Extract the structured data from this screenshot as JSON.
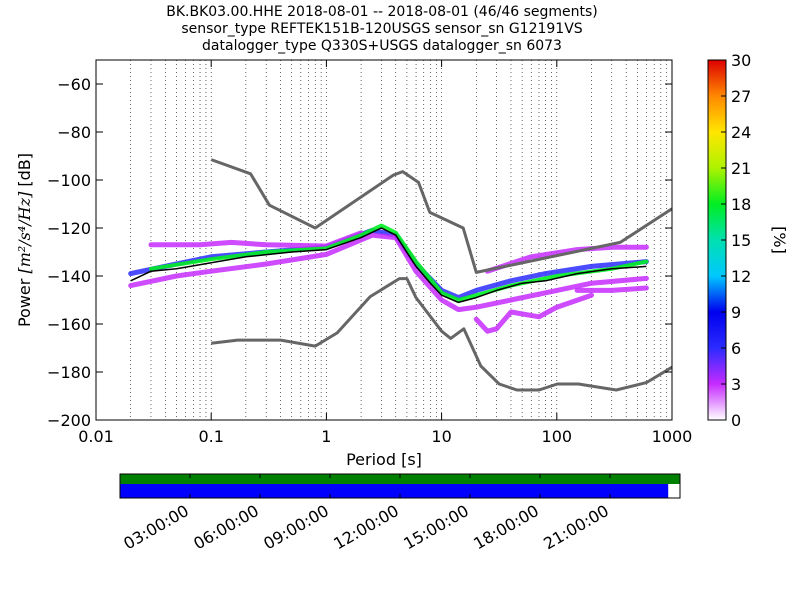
{
  "title_lines": [
    "BK.BK03.00.HHE   2018-08-01 -- 2018-08-01  (46/46 segments)",
    "sensor_type REFTEK151B-120USGS sensor_sn G12191VS",
    "datalogger_type Q330S+USGS datalogger_sn 6073"
  ],
  "chart_data": {
    "type": "heatmap",
    "subtype": "probabilistic-power-spectral-density",
    "x_axis": {
      "label": "Period [s]",
      "scale": "log",
      "lim": [
        0.01,
        1000
      ],
      "ticks": [
        0.01,
        0.1,
        1,
        10,
        100,
        1000
      ],
      "tick_labels": [
        "0.01",
        "0.1",
        "1",
        "10",
        "100",
        "1000"
      ]
    },
    "y_axis": {
      "label_prefix": "Power ",
      "label_math": "[m²/s⁴/Hz]",
      "label_suffix": " [dB]",
      "lim": [
        -200,
        -50
      ],
      "ticks": [
        -200,
        -180,
        -160,
        -140,
        -120,
        -100,
        -80,
        -60
      ],
      "tick_labels": [
        "−200",
        "−180",
        "−160",
        "−140",
        "−120",
        "−100",
        "−80",
        "−60"
      ]
    },
    "grid": "dotted-vertical",
    "colorbar": {
      "label": "[%]",
      "range": [
        0,
        30
      ],
      "ticks": [
        0,
        3,
        6,
        9,
        12,
        15,
        18,
        21,
        24,
        27,
        30
      ],
      "stops": [
        "#ffffff",
        "#c62bff",
        "#2b2bff",
        "#0000ee",
        "#00c8ff",
        "#00e0b0",
        "#00ee22",
        "#aef200",
        "#ffe600",
        "#ff8800",
        "#dd0000"
      ]
    },
    "noise_models": [
      {
        "name": "NHNM",
        "color": "#666666",
        "points": [
          [
            0.1,
            -91.5
          ],
          [
            0.22,
            -97.4
          ],
          [
            0.32,
            -110.5
          ],
          [
            0.8,
            -120
          ],
          [
            3.8,
            -98
          ],
          [
            4.6,
            -96.5
          ],
          [
            6.3,
            -101
          ],
          [
            7.9,
            -113.5
          ],
          [
            15.4,
            -120
          ],
          [
            20,
            -138.5
          ],
          [
            354.8,
            -126
          ],
          [
            1000,
            -112
          ]
        ]
      },
      {
        "name": "NLNM",
        "color": "#666666",
        "points": [
          [
            0.1,
            -168
          ],
          [
            0.17,
            -166.7
          ],
          [
            0.4,
            -166.7
          ],
          [
            0.8,
            -169.2
          ],
          [
            1.24,
            -163.7
          ],
          [
            2.4,
            -148.6
          ],
          [
            4.3,
            -141.1
          ],
          [
            5,
            -141.1
          ],
          [
            6,
            -149
          ],
          [
            10,
            -163
          ],
          [
            12,
            -166
          ],
          [
            15.6,
            -162
          ],
          [
            21.9,
            -177.5
          ],
          [
            31.6,
            -185
          ],
          [
            45,
            -187.5
          ],
          [
            70,
            -187.5
          ],
          [
            101,
            -185
          ],
          [
            154,
            -185
          ],
          [
            328,
            -187.5
          ],
          [
            600,
            -184.4
          ],
          [
            1000,
            -178
          ]
        ]
      }
    ],
    "mode_curve": {
      "color": "#000000",
      "points": [
        [
          0.02,
          -142
        ],
        [
          0.03,
          -138
        ],
        [
          0.05,
          -137
        ],
        [
          0.1,
          -134.5
        ],
        [
          0.2,
          -132
        ],
        [
          0.5,
          -130
        ],
        [
          1,
          -129
        ],
        [
          2,
          -124
        ],
        [
          3,
          -120
        ],
        [
          4,
          -123
        ],
        [
          6,
          -136
        ],
        [
          8,
          -143
        ],
        [
          10,
          -148
        ],
        [
          14,
          -151
        ],
        [
          20,
          -149
        ],
        [
          30,
          -146
        ],
        [
          50,
          -143
        ],
        [
          80,
          -142
        ],
        [
          150,
          -139
        ],
        [
          300,
          -137
        ],
        [
          600,
          -136
        ]
      ]
    },
    "spread_curves": [
      {
        "color": "#2b2bff",
        "points": [
          [
            0.02,
            -139
          ],
          [
            0.05,
            -135
          ],
          [
            0.1,
            -132
          ],
          [
            0.3,
            -130
          ],
          [
            1,
            -128
          ],
          [
            2.5,
            -121
          ],
          [
            4,
            -123
          ],
          [
            6,
            -135
          ],
          [
            10,
            -146
          ],
          [
            14,
            -149
          ],
          [
            20,
            -146
          ],
          [
            40,
            -142
          ],
          [
            80,
            -139
          ],
          [
            200,
            -136
          ],
          [
            600,
            -134
          ]
        ]
      },
      {
        "color": "#c62bff",
        "points": [
          [
            0.02,
            -144
          ],
          [
            0.05,
            -140
          ],
          [
            0.1,
            -138
          ],
          [
            0.3,
            -135
          ],
          [
            1,
            -131
          ],
          [
            2.5,
            -123
          ],
          [
            4,
            -124
          ],
          [
            6,
            -138
          ],
          [
            10,
            -150
          ],
          [
            14,
            -154
          ],
          [
            20,
            -153
          ],
          [
            40,
            -150
          ],
          [
            80,
            -147
          ],
          [
            200,
            -143
          ],
          [
            600,
            -141
          ]
        ]
      },
      {
        "color": "#c62bff",
        "points": [
          [
            0.03,
            -127
          ],
          [
            0.08,
            -127
          ],
          [
            0.15,
            -126
          ],
          [
            0.3,
            -127
          ],
          [
            1,
            -127.5
          ],
          [
            2,
            -122
          ]
        ]
      },
      {
        "color": "#c62bff",
        "points": [
          [
            25,
            -138
          ],
          [
            60,
            -132
          ],
          [
            150,
            -129
          ],
          [
            300,
            -128
          ],
          [
            600,
            -128
          ]
        ]
      },
      {
        "color": "#c62bff",
        "points": [
          [
            20,
            -158
          ],
          [
            25,
            -163
          ],
          [
            30,
            -162
          ],
          [
            40,
            -155
          ],
          [
            70,
            -157
          ],
          [
            100,
            -153
          ],
          [
            200,
            -148
          ]
        ]
      },
      {
        "color": "#c62bff",
        "points": [
          [
            150,
            -146
          ],
          [
            300,
            -146
          ],
          [
            600,
            -145
          ]
        ]
      }
    ],
    "core_band": {
      "color": "#00ee22",
      "points": [
        [
          0.03,
          -137
        ],
        [
          0.1,
          -133
        ],
        [
          0.3,
          -130
        ],
        [
          1,
          -128.5
        ],
        [
          2,
          -123
        ],
        [
          3,
          -119
        ],
        [
          4,
          -122
        ],
        [
          6,
          -134
        ],
        [
          10,
          -147
        ],
        [
          14,
          -150
        ],
        [
          20,
          -148
        ],
        [
          40,
          -144
        ],
        [
          100,
          -140
        ],
        [
          300,
          -137
        ],
        [
          600,
          -134
        ]
      ]
    }
  },
  "timeline": {
    "ticks": [
      "03:00:00",
      "06:00:00",
      "09:00:00",
      "12:00:00",
      "15:00:00",
      "18:00:00",
      "21:00:00"
    ],
    "tick_hours": [
      3,
      6,
      9,
      12,
      15,
      18,
      21
    ],
    "range_hours": [
      0,
      24
    ],
    "data_bar_color": "#008000",
    "coverage_bar_color": "#0000ff",
    "coverage_end_fraction": 0.979
  }
}
